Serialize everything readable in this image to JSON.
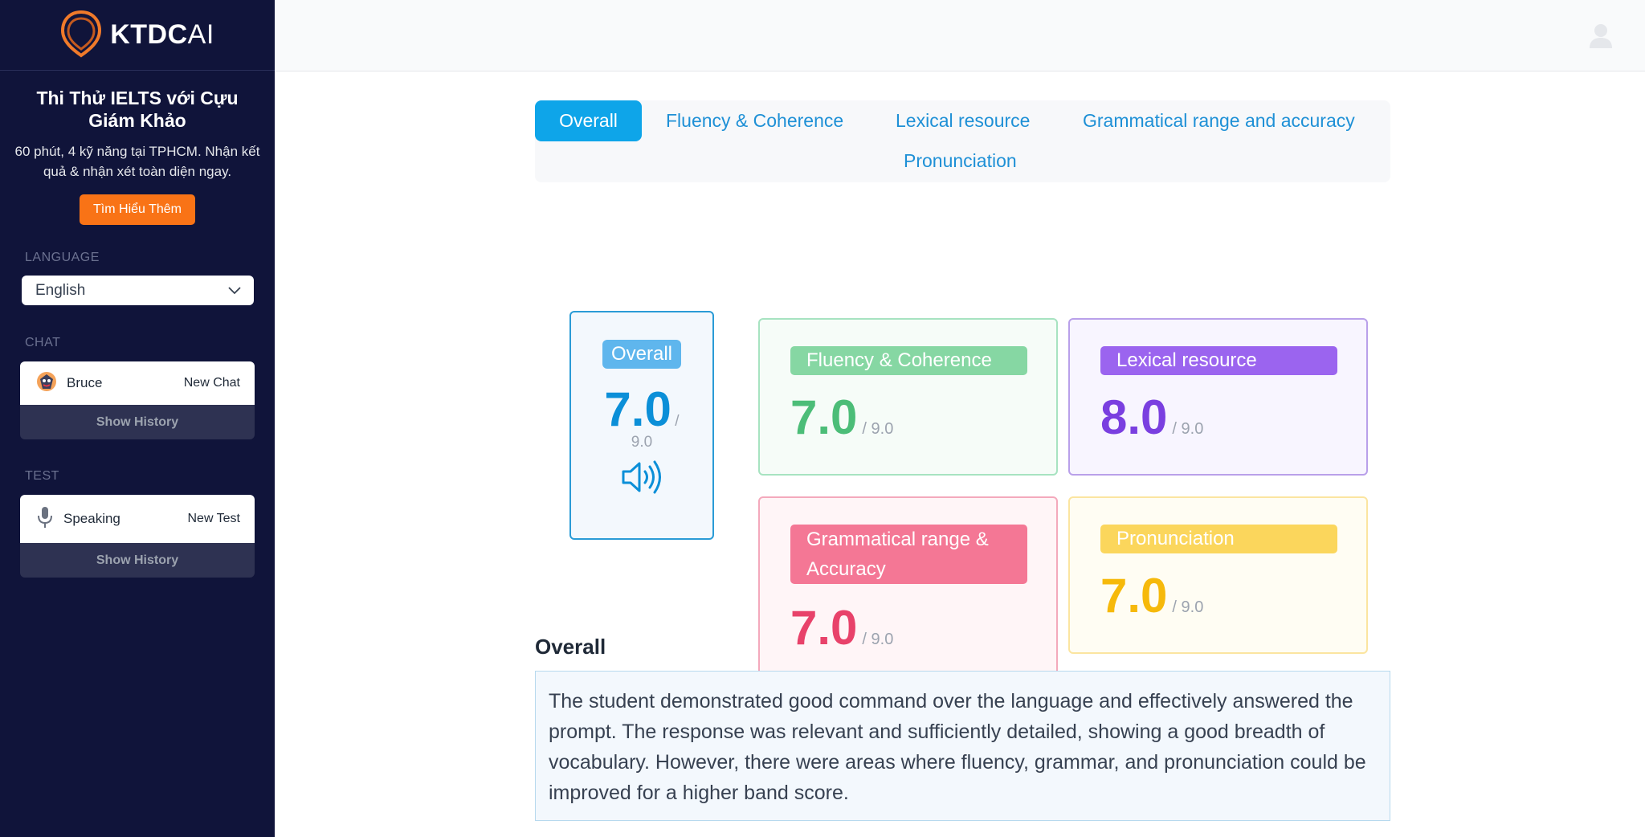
{
  "brand": {
    "name": "KTDC",
    "suffix": "AI"
  },
  "promo": {
    "title": "Thi Thử IELTS với Cựu Giám Khảo",
    "subtitle": "60 phút, 4 kỹ năng tại TPHCM. Nhận kết quả & nhận xét toàn diện ngay.",
    "button": "Tìm Hiểu Thêm"
  },
  "language": {
    "label": "LANGUAGE",
    "value": "English"
  },
  "chat": {
    "label": "CHAT",
    "name": "Bruce",
    "action": "New Chat",
    "history": "Show History"
  },
  "test": {
    "label": "TEST",
    "name": "Speaking",
    "action": "New Test",
    "history": "Show History"
  },
  "tabs": [
    "Overall",
    "Fluency & Coherence",
    "Lexical resource",
    "Grammatical range and accuracy",
    "Pronunciation"
  ],
  "scores": {
    "overall": {
      "label": "Overall",
      "score": "7.0",
      "max": "/",
      "max2": "9.0"
    },
    "fluency": {
      "label": "Fluency & Coherence",
      "score": "7.0",
      "max": "/ 9.0"
    },
    "lexical": {
      "label": "Lexical resource",
      "score": "8.0",
      "max": "/ 9.0"
    },
    "grammar": {
      "label": "Grammatical range & Accuracy",
      "score": "7.0",
      "max": "/ 9.0"
    },
    "pronunciation": {
      "label": "Pronunciation",
      "score": "7.0",
      "max": "/ 9.0"
    }
  },
  "feedback": {
    "title": "Overall",
    "text": "The student demonstrated good command over the language and effectively answered the prompt. The response was relevant and sufficiently detailed, showing a good breadth of vocabulary. However, there were areas where fluency, grammar, and pronunciation could be improved for a higher band score."
  },
  "colors": {
    "sidebar": "#10143a",
    "accent": "#0ea5e9",
    "fluency": "#4cbd78",
    "lexical": "#7a3fe0",
    "grammar": "#e8426a",
    "pronunciation": "#f6b90b"
  },
  "icons": {
    "logo": "map-pin-logo-icon",
    "user": "user-avatar-icon",
    "chevron": "chevron-down-icon",
    "mic": "microphone-icon",
    "speaker": "speaker-icon",
    "bot": "bruce-avatar-icon"
  }
}
